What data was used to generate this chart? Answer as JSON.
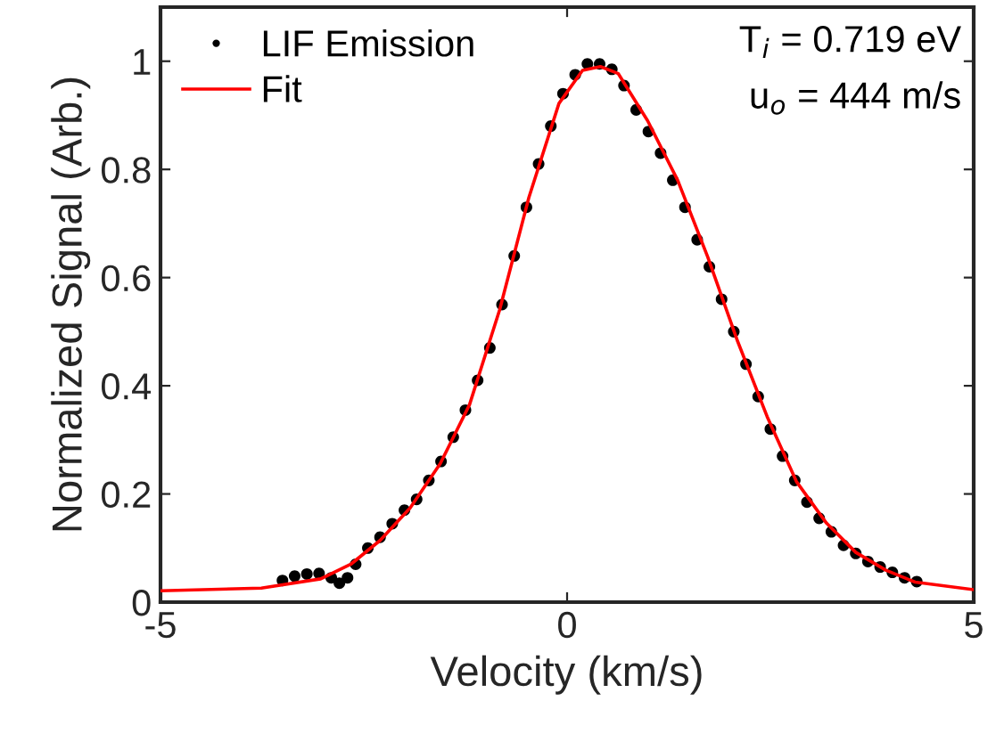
{
  "chart_data": {
    "type": "scatter",
    "xlabel": "Velocity (km/s)",
    "ylabel": "Normalized Signal (Arb.)",
    "xlim": [
      -5,
      5
    ],
    "ylim": [
      0,
      1.1
    ],
    "xticks": [
      -5,
      0,
      5
    ],
    "yticks": [
      0,
      0.2,
      0.4,
      0.6,
      0.8,
      1
    ],
    "grid": false,
    "legend": "top left",
    "annotations": [
      "T$_{i}$ = 0.719 eV",
      "u$_{o}$ = 444 m/s"
    ],
    "series": [
      {
        "name": "LIF Emission",
        "marker": "circle",
        "color": "#000000",
        "x": [
          -3.5,
          -3.35,
          -3.2,
          -3.05,
          -2.9,
          -2.8,
          -2.7,
          -2.6,
          -2.45,
          -2.3,
          -2.15,
          -2.0,
          -1.85,
          -1.7,
          -1.55,
          -1.4,
          -1.25,
          -1.1,
          -0.95,
          -0.8,
          -0.65,
          -0.5,
          -0.35,
          -0.2,
          -0.05,
          0.1,
          0.25,
          0.4,
          0.55,
          0.7,
          0.85,
          1.0,
          1.15,
          1.3,
          1.45,
          1.6,
          1.75,
          1.9,
          2.05,
          2.2,
          2.35,
          2.5,
          2.65,
          2.8,
          2.95,
          3.1,
          3.25,
          3.4,
          3.55,
          3.7,
          3.85,
          4.0,
          4.15,
          4.3
        ],
        "values": [
          0.04,
          0.048,
          0.052,
          0.053,
          0.045,
          0.035,
          0.045,
          0.07,
          0.1,
          0.12,
          0.145,
          0.17,
          0.19,
          0.225,
          0.26,
          0.305,
          0.355,
          0.41,
          0.47,
          0.55,
          0.64,
          0.73,
          0.81,
          0.88,
          0.94,
          0.975,
          0.995,
          0.995,
          0.985,
          0.955,
          0.91,
          0.87,
          0.83,
          0.78,
          0.73,
          0.67,
          0.62,
          0.56,
          0.5,
          0.44,
          0.38,
          0.32,
          0.27,
          0.225,
          0.185,
          0.155,
          0.13,
          0.105,
          0.09,
          0.075,
          0.065,
          0.055,
          0.045,
          0.038
        ]
      },
      {
        "name": "Fit",
        "type": "line",
        "marker": "none",
        "line_style": "solid",
        "color": "#ff0000",
        "x": [
          -5,
          -3.76,
          -3.03,
          -2.66,
          -2.3,
          -1.93,
          -1.56,
          -1.2,
          -0.83,
          -0.47,
          -0.1,
          0.19,
          0.41,
          0.63,
          0.99,
          1.36,
          1.73,
          2.09,
          2.46,
          2.82,
          3.19,
          3.55,
          3.92,
          4.28,
          5
        ],
        "values": [
          0.021,
          0.026,
          0.043,
          0.07,
          0.114,
          0.174,
          0.256,
          0.365,
          0.54,
          0.748,
          0.922,
          0.983,
          0.99,
          0.977,
          0.89,
          0.78,
          0.638,
          0.485,
          0.343,
          0.223,
          0.146,
          0.092,
          0.059,
          0.037,
          0.023
        ]
      }
    ]
  }
}
